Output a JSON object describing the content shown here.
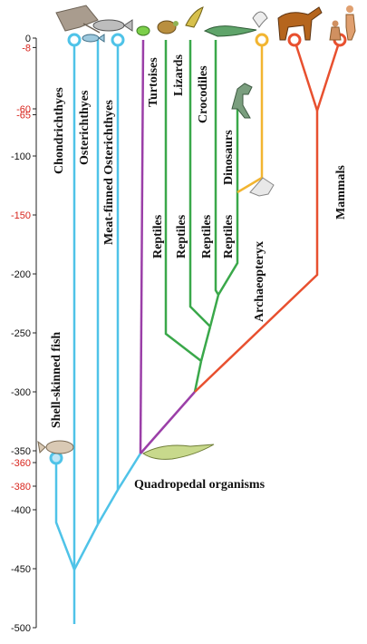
{
  "colors": {
    "fish": "#4fc3e8",
    "turtle": "#9b3fa8",
    "reptile": "#3aa84a",
    "bird": "#f2b531",
    "mammal": "#e8502f",
    "axis": "#222222",
    "tick_black": "#111111",
    "tick_red": "#d8251d"
  },
  "axis": {
    "ticks": [
      {
        "value": 0,
        "label": "0",
        "color": "black"
      },
      {
        "value": -8,
        "label": "-8",
        "color": "red"
      },
      {
        "value": -60,
        "label": "-60",
        "color": "red"
      },
      {
        "value": -65,
        "label": "-65",
        "color": "red"
      },
      {
        "value": -100,
        "label": "-100",
        "color": "black"
      },
      {
        "value": -150,
        "label": "-150",
        "color": "red"
      },
      {
        "value": -200,
        "label": "-200",
        "color": "black"
      },
      {
        "value": -250,
        "label": "-250",
        "color": "black"
      },
      {
        "value": -300,
        "label": "-300",
        "color": "black"
      },
      {
        "value": -350,
        "label": "-350",
        "color": "black"
      },
      {
        "value": -360,
        "label": "-360",
        "color": "red"
      },
      {
        "value": -380,
        "label": "-380",
        "color": "red"
      },
      {
        "value": -400,
        "label": "-400",
        "color": "black"
      },
      {
        "value": -450,
        "label": "-450",
        "color": "black"
      },
      {
        "value": -500,
        "label": "-500",
        "color": "black"
      }
    ]
  },
  "labels": {
    "chondrichthyes": "Chondrichthyes",
    "osterichthyes": "Osterichthyes",
    "meat_finned": "Meat-finned Osterichthyes",
    "turtoises": "Turtoises",
    "lizards": "Lizards",
    "crocodiles": "Crocodiles",
    "dinosaurs": "Dinosaurs",
    "reptiles_1": "Reptiles",
    "reptiles_2": "Reptiles",
    "reptiles_3": "Reptiles",
    "reptiles_4": "Reptiles",
    "archaeopteryx": "Archaeopteryx",
    "mammals": "Mammals",
    "shell_skinned": "Shell-skinned fish",
    "quadropedal": "Quadropedal organisms"
  }
}
